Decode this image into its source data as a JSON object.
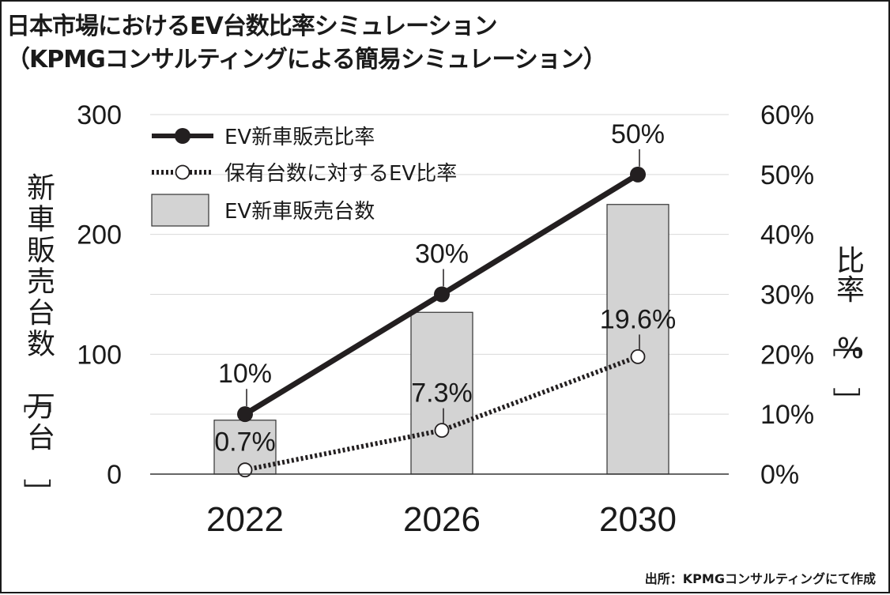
{
  "title": {
    "line1": "日本市場におけるEV台数比率シミュレーション",
    "line2": "（KPMGコンサルティングによる簡易シミュレーション）"
  },
  "source": "出所：KPMGコンサルティングにて作成",
  "chart_data": {
    "type": "bar",
    "categories": [
      "2022",
      "2026",
      "2030"
    ],
    "series": [
      {
        "name": "EV新車販売台数",
        "type": "bar",
        "axis": "left",
        "values": [
          45,
          135,
          225
        ]
      },
      {
        "name": "EV新車販売比率",
        "type": "line",
        "axis": "right",
        "style": "solid",
        "values": [
          10,
          30,
          50
        ],
        "labels": [
          "10%",
          "30%",
          "50%"
        ]
      },
      {
        "name": "保有台数に対するEV比率",
        "type": "line",
        "axis": "right",
        "style": "dotted",
        "values": [
          0.7,
          7.3,
          19.6
        ],
        "labels": [
          "0.7%",
          "7.3%",
          "19.6%"
        ]
      }
    ],
    "left_axis": {
      "label": "新車販売台数［万台］",
      "range": [
        0,
        300
      ],
      "ticks": [
        "0",
        "100",
        "200",
        "300"
      ]
    },
    "right_axis": {
      "label": "比率［%］",
      "range": [
        0,
        60
      ],
      "ticks": [
        "0%",
        "10%",
        "20%",
        "30%",
        "40%",
        "50%",
        "60%"
      ]
    },
    "grid": true,
    "legend_position": "top-left",
    "colors": {
      "bar": "#d3d3d3",
      "bar_stroke": "#333333",
      "line": "#231f20",
      "marker_open": "#ffffff",
      "grid": "#d9d9d9"
    }
  }
}
